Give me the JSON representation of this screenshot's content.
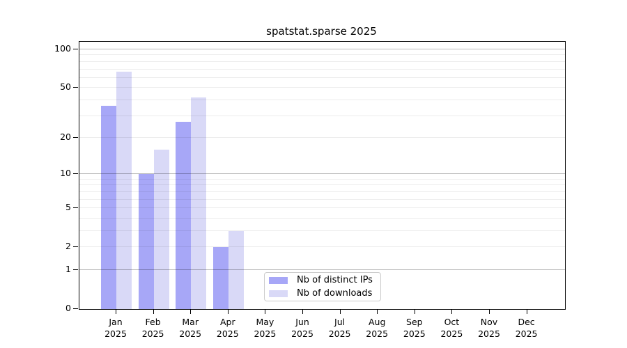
{
  "chart_data": {
    "type": "bar",
    "title": "spatstat.sparse 2025",
    "xlabel": "",
    "ylabel": "",
    "year": "2025",
    "months": [
      "Jan",
      "Feb",
      "Mar",
      "Apr",
      "May",
      "Jun",
      "Jul",
      "Aug",
      "Sep",
      "Oct",
      "Nov",
      "Dec"
    ],
    "series": [
      {
        "name": "Nb of distinct IPs",
        "color": "#a7a7f7",
        "values": [
          36,
          10,
          27,
          2,
          0,
          0,
          0,
          0,
          0,
          0,
          0,
          0
        ]
      },
      {
        "name": "Nb of downloads",
        "color": "#d9d9f7",
        "values": [
          67,
          16,
          42,
          3,
          0,
          0,
          0,
          0,
          0,
          0,
          0,
          0
        ]
      }
    ],
    "yscale": "log1p",
    "ylim": [
      0,
      100
    ],
    "yticks": [
      0,
      1,
      2,
      5,
      10,
      20,
      50,
      100
    ],
    "major_gridlines": [
      1,
      10,
      100
    ],
    "minor_gridlines": [
      2,
      3,
      4,
      5,
      6,
      7,
      8,
      9,
      20,
      30,
      40,
      50,
      60,
      70,
      80,
      90
    ],
    "grid": "on",
    "grid_on_top_of_bars": true,
    "legend_position": "inside-bottom-center",
    "colors": {
      "background": "#ffffff",
      "axis_frame": "#000000",
      "text": "#000000",
      "legend_border": "#cccccc"
    }
  }
}
